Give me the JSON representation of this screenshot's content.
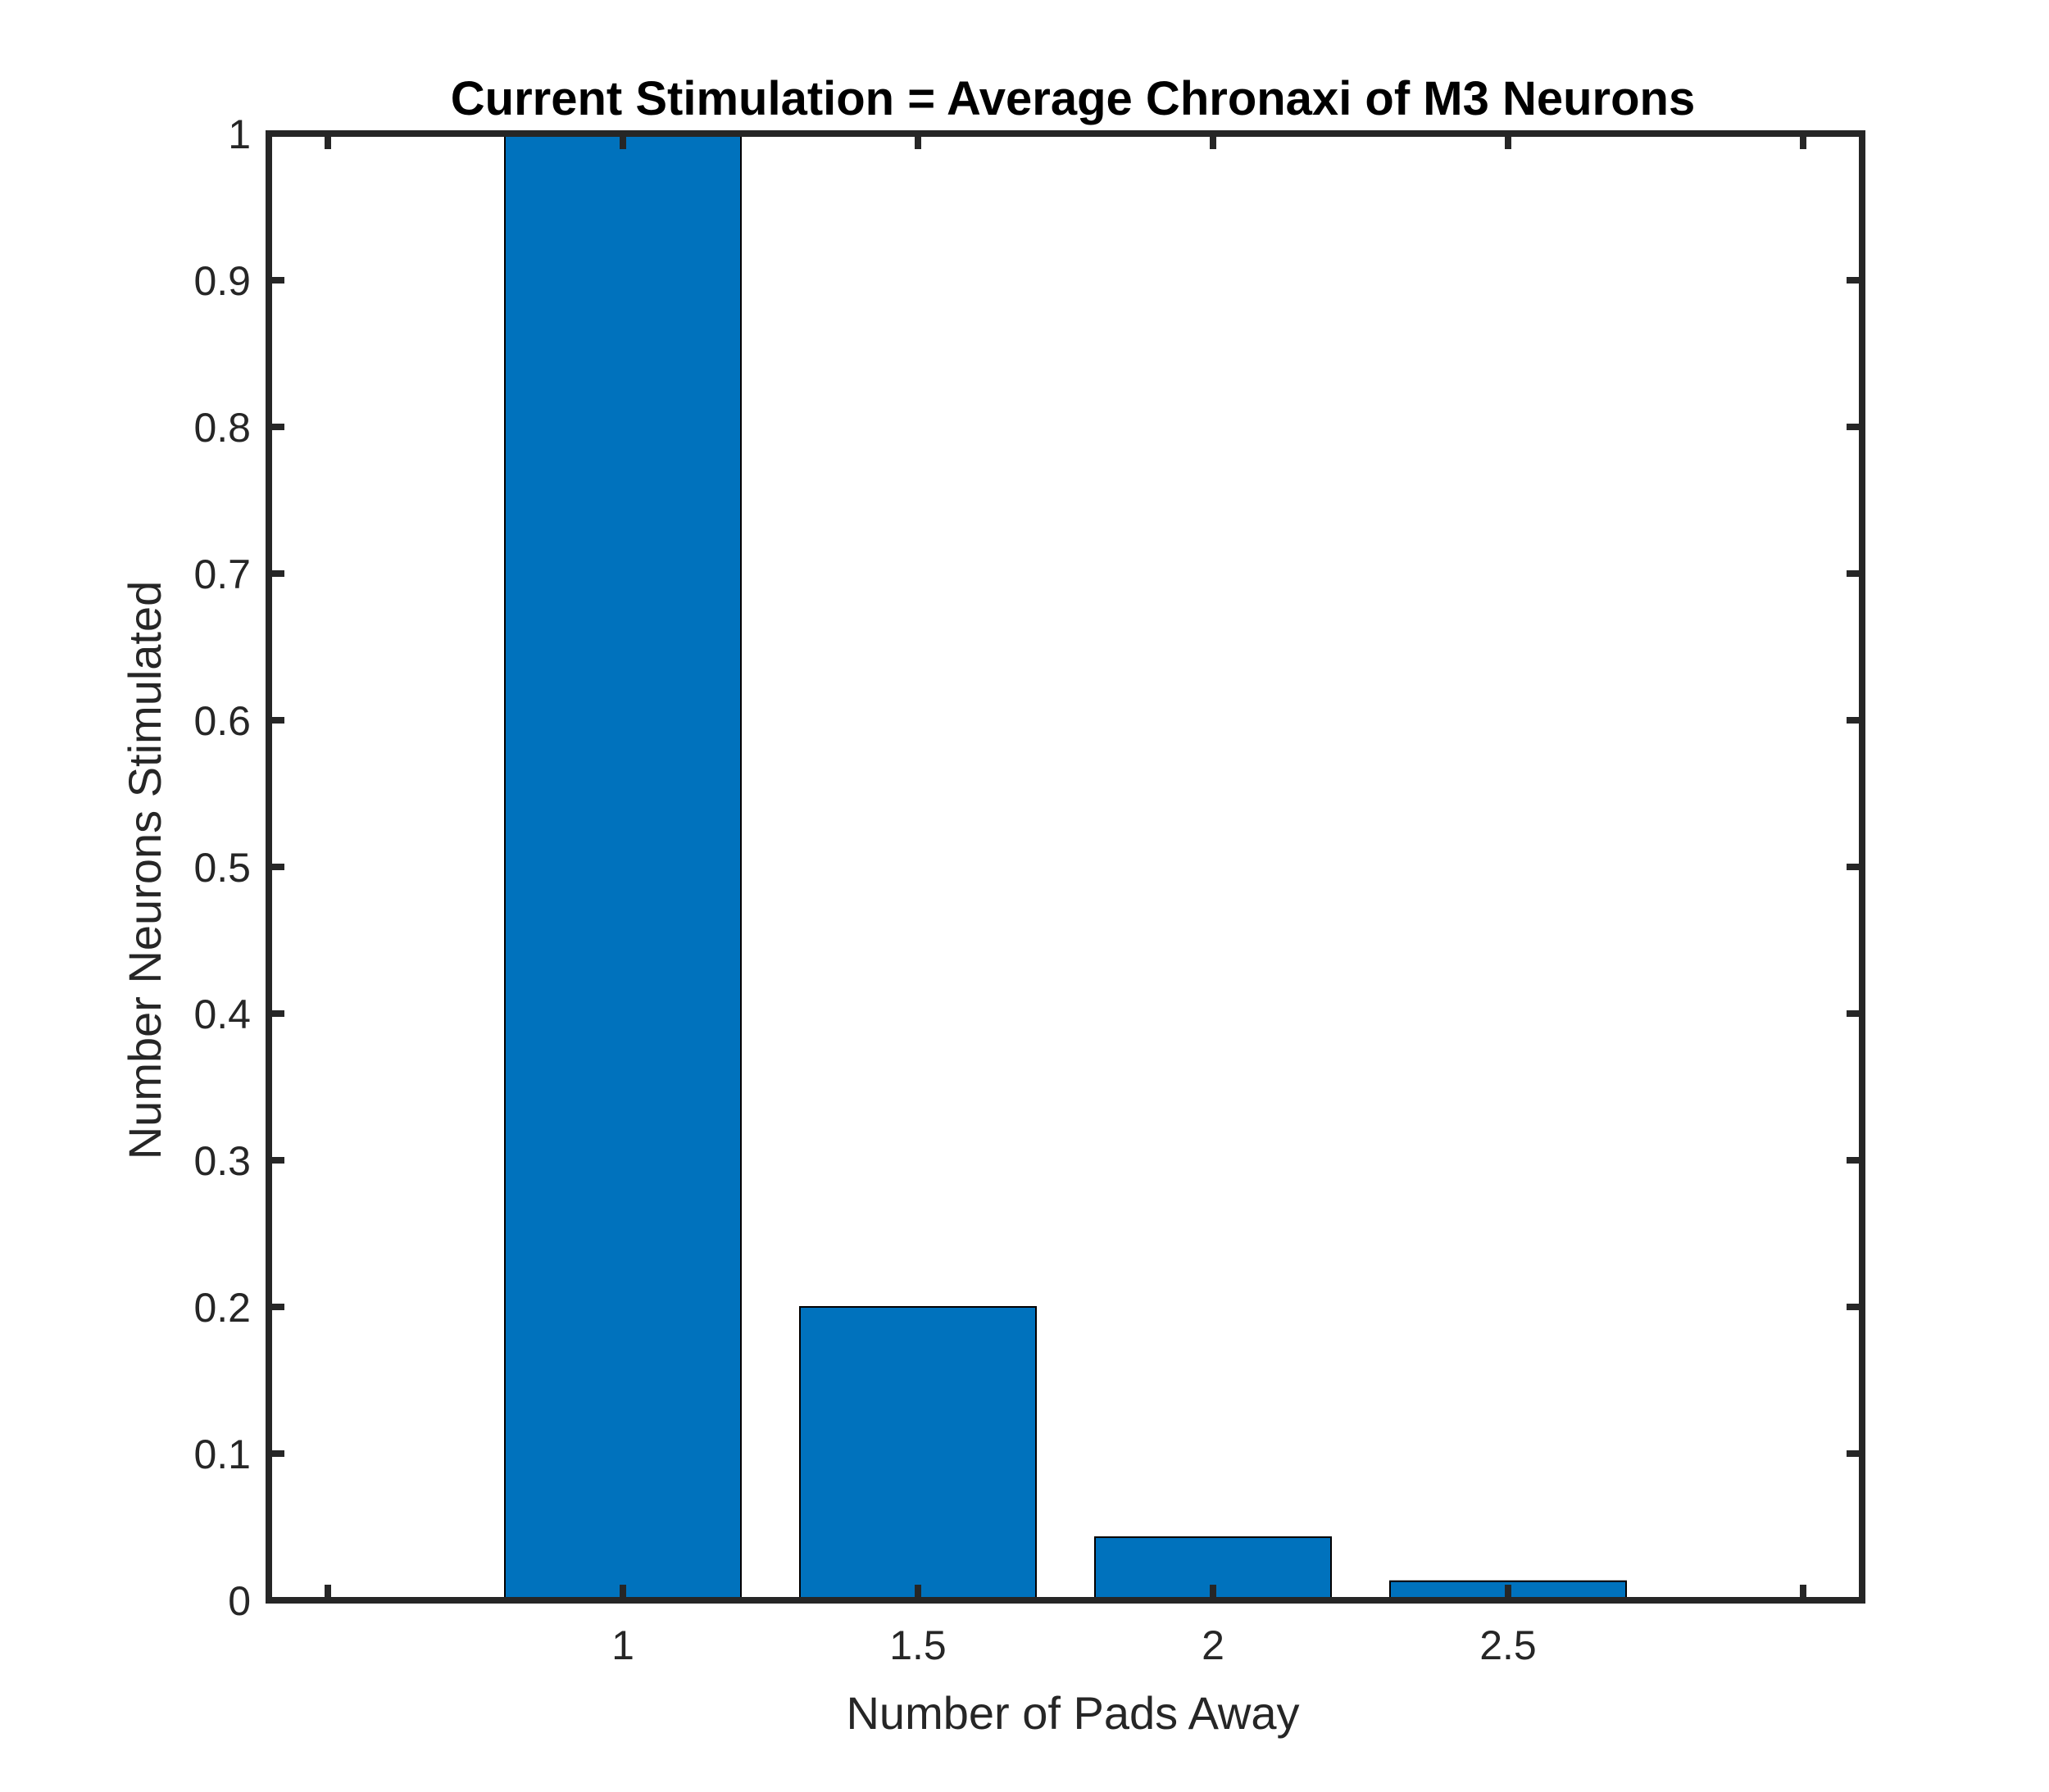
{
  "chart_data": {
    "type": "bar",
    "title": "Current Stimulation = Average Chronaxi of M3 Neurons",
    "xlabel": "Number of Pads Away",
    "ylabel": "Number Neurons Stimulated",
    "x": [
      1,
      1.5,
      2,
      2.5
    ],
    "values": [
      1.0,
      0.2,
      0.043,
      0.013
    ],
    "xlim": [
      0.4,
      3.1
    ],
    "ylim": [
      0,
      1
    ],
    "xticks": [
      0.5,
      1,
      1.5,
      2,
      2.5,
      3
    ],
    "xtick_labels": [
      "",
      "1",
      "1.5",
      "2",
      "2.5",
      ""
    ],
    "yticks": [
      0,
      0.1,
      0.2,
      0.3,
      0.4,
      0.5,
      0.6,
      0.7,
      0.8,
      0.9,
      1
    ],
    "ytick_labels": [
      "0",
      "0.1",
      "0.2",
      "0.3",
      "0.4",
      "0.5",
      "0.6",
      "0.7",
      "0.8",
      "0.9",
      "1"
    ],
    "bar_width": 0.4,
    "bar_color": "#0072BD",
    "bar_edge_color": "#000000",
    "axis_color": "#262626",
    "grid": false,
    "legend": "none"
  }
}
